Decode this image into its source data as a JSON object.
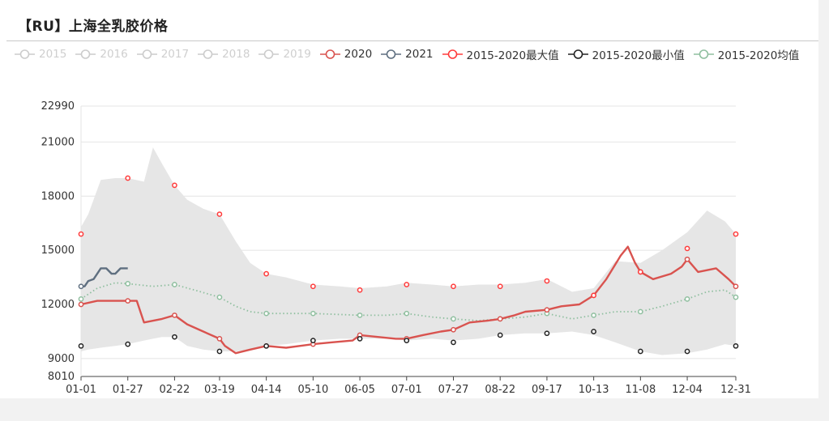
{
  "title": "【RU】上海全乳胶价格",
  "legend": [
    {
      "name": "2015",
      "active": false,
      "color": "#cccccc",
      "style": "line"
    },
    {
      "name": "2016",
      "active": false,
      "color": "#cccccc",
      "style": "line"
    },
    {
      "name": "2017",
      "active": false,
      "color": "#cccccc",
      "style": "line"
    },
    {
      "name": "2018",
      "active": false,
      "color": "#cccccc",
      "style": "line"
    },
    {
      "name": "2019",
      "active": false,
      "color": "#cccccc",
      "style": "line"
    },
    {
      "name": "2020",
      "active": true,
      "color": "#d9534f",
      "style": "line"
    },
    {
      "name": "2021",
      "active": true,
      "color": "#5f6f80",
      "style": "line"
    },
    {
      "name": "2015-2020最大值",
      "active": true,
      "color": "#ff3b3b",
      "style": "line"
    },
    {
      "name": "2015-2020最小值",
      "active": true,
      "color": "#222222",
      "style": "line"
    },
    {
      "name": "2015-2020均值",
      "active": true,
      "color": "#8fbf9f",
      "style": "line"
    }
  ],
  "chart_data": {
    "type": "line",
    "title": "【RU】上海全乳胶价格",
    "xlabel": "",
    "ylabel": "",
    "x_tick_labels": [
      "01-01",
      "01-27",
      "02-22",
      "03-19",
      "04-14",
      "05-10",
      "06-05",
      "07-01",
      "07-27",
      "08-22",
      "09-17",
      "10-13",
      "11-08",
      "12-04",
      "12-31"
    ],
    "y_ticks": [
      8010,
      9000,
      12000,
      15000,
      18000,
      21000,
      22990
    ],
    "ylim": [
      8010,
      22990
    ],
    "grid": true,
    "band": {
      "name": "2015-2020 range",
      "color": "#e6e6e6",
      "x": [
        "01-01",
        "01-05",
        "01-12",
        "01-20",
        "01-27",
        "02-05",
        "02-10",
        "02-15",
        "02-22",
        "03-01",
        "03-10",
        "03-19",
        "03-28",
        "04-05",
        "04-14",
        "04-25",
        "05-10",
        "05-25",
        "06-05",
        "06-20",
        "07-01",
        "07-15",
        "07-27",
        "08-10",
        "08-22",
        "09-05",
        "09-17",
        "10-01",
        "10-13",
        "10-25",
        "11-08",
        "11-20",
        "12-04",
        "12-15",
        "12-25",
        "12-31"
      ],
      "upper": [
        16300,
        17000,
        18900,
        19000,
        19000,
        18800,
        20700,
        19800,
        18600,
        17800,
        17300,
        17000,
        15500,
        14300,
        13700,
        13500,
        13100,
        13000,
        12900,
        13000,
        13200,
        13100,
        13000,
        13100,
        13100,
        13200,
        13400,
        12700,
        12900,
        14400,
        14300,
        15000,
        16000,
        17200,
        16600,
        15900
      ],
      "lower": [
        9400,
        9500,
        9600,
        9700,
        9800,
        10000,
        10100,
        10200,
        10200,
        9700,
        9500,
        9400,
        9400,
        9500,
        9700,
        9800,
        10000,
        10100,
        10100,
        10100,
        10000,
        10100,
        10000,
        10100,
        10300,
        10400,
        10400,
        10500,
        10300,
        9900,
        9400,
        9200,
        9300,
        9500,
        9800,
        9700
      ]
    },
    "series": [
      {
        "name": "2015-2020最大值",
        "color": "#ff3b3b",
        "marker_only": true,
        "x": [
          "01-01",
          "01-27",
          "02-22",
          "03-19",
          "04-14",
          "05-10",
          "06-05",
          "07-01",
          "07-27",
          "08-22",
          "09-17",
          "10-13",
          "11-08",
          "12-04",
          "12-31"
        ],
        "values": [
          15900,
          19000,
          18600,
          17000,
          13700,
          13000,
          12800,
          13100,
          13000,
          13000,
          13300,
          12500,
          13800,
          15100,
          15900
        ]
      },
      {
        "name": "2015-2020最小值",
        "color": "#222222",
        "marker_only": true,
        "x": [
          "01-01",
          "01-27",
          "02-22",
          "03-19",
          "04-14",
          "05-10",
          "06-05",
          "07-01",
          "07-27",
          "08-22",
          "09-17",
          "10-13",
          "11-08",
          "12-04",
          "12-31"
        ],
        "values": [
          9700,
          9800,
          10200,
          9400,
          9700,
          10000,
          10100,
          10000,
          9900,
          10300,
          10400,
          10500,
          9400,
          9400,
          9700
        ]
      },
      {
        "name": "2015-2020均值",
        "color": "#8fbf9f",
        "dotted": true,
        "x": [
          "01-01",
          "01-10",
          "01-20",
          "01-27",
          "02-10",
          "02-22",
          "03-05",
          "03-19",
          "03-28",
          "04-05",
          "04-14",
          "05-10",
          "06-05",
          "06-20",
          "07-01",
          "07-15",
          "07-27",
          "08-10",
          "08-22",
          "09-05",
          "09-17",
          "10-01",
          "10-13",
          "10-25",
          "11-08",
          "11-20",
          "12-04",
          "12-15",
          "12-25",
          "12-31"
        ],
        "values": [
          12300,
          12900,
          13200,
          13150,
          13000,
          13100,
          12800,
          12400,
          11900,
          11600,
          11500,
          11500,
          11400,
          11400,
          11500,
          11300,
          11200,
          11100,
          11200,
          11300,
          11500,
          11200,
          11400,
          11600,
          11600,
          11900,
          12300,
          12700,
          12800,
          12400
        ],
        "marker_x": [
          "01-01",
          "01-27",
          "02-22",
          "03-19",
          "04-14",
          "05-10",
          "06-05",
          "07-01",
          "07-27",
          "08-22",
          "09-17",
          "10-13",
          "11-08",
          "12-04",
          "12-31"
        ],
        "marker_values": [
          12300,
          13150,
          13100,
          12400,
          11500,
          11500,
          11400,
          11500,
          11200,
          11200,
          11500,
          11400,
          11600,
          12300,
          12400
        ]
      },
      {
        "name": "2020",
        "color": "#d9534f",
        "x": [
          "01-01",
          "01-10",
          "01-20",
          "01-27",
          "02-01",
          "02-05",
          "02-15",
          "02-22",
          "03-01",
          "03-10",
          "03-19",
          "03-22",
          "03-28",
          "04-05",
          "04-14",
          "04-25",
          "05-10",
          "05-20",
          "06-01",
          "06-05",
          "06-15",
          "06-25",
          "07-01",
          "07-10",
          "07-20",
          "07-27",
          "08-05",
          "08-15",
          "08-22",
          "08-30",
          "09-05",
          "09-17",
          "09-25",
          "10-05",
          "10-13",
          "10-20",
          "10-28",
          "11-01",
          "11-05",
          "11-08",
          "11-15",
          "11-25",
          "12-01",
          "12-04",
          "12-10",
          "12-20",
          "12-27",
          "12-31"
        ],
        "values": [
          12000,
          12200,
          12200,
          12200,
          12200,
          11000,
          11200,
          11400,
          10900,
          10500,
          10100,
          9700,
          9300,
          9500,
          9700,
          9600,
          9800,
          9900,
          10000,
          10300,
          10200,
          10100,
          10100,
          10300,
          10500,
          10600,
          11000,
          11100,
          11200,
          11400,
          11600,
          11700,
          11900,
          12000,
          12500,
          13400,
          14700,
          15200,
          14300,
          13800,
          13400,
          13700,
          14100,
          14500,
          13800,
          14000,
          13400,
          13000
        ],
        "marker_x": [
          "01-01",
          "01-27",
          "02-22",
          "03-19",
          "04-14",
          "05-10",
          "06-05",
          "07-01",
          "07-27",
          "08-22",
          "09-17",
          "10-13",
          "11-08",
          "12-04",
          "12-31"
        ],
        "marker_values": [
          12000,
          12200,
          11400,
          10100,
          9700,
          9800,
          10300,
          10100,
          10600,
          11200,
          11700,
          12500,
          13800,
          14500,
          13000
        ]
      },
      {
        "name": "2021",
        "color": "#5f6f80",
        "x": [
          "01-01",
          "01-03",
          "01-05",
          "01-08",
          "01-12",
          "01-15",
          "01-18",
          "01-20",
          "01-23",
          "01-27"
        ],
        "values": [
          13000,
          13000,
          13300,
          13400,
          14000,
          14000,
          13700,
          13700,
          14000,
          14000
        ],
        "marker_x": [
          "01-01"
        ],
        "marker_values": [
          13000
        ]
      }
    ]
  }
}
